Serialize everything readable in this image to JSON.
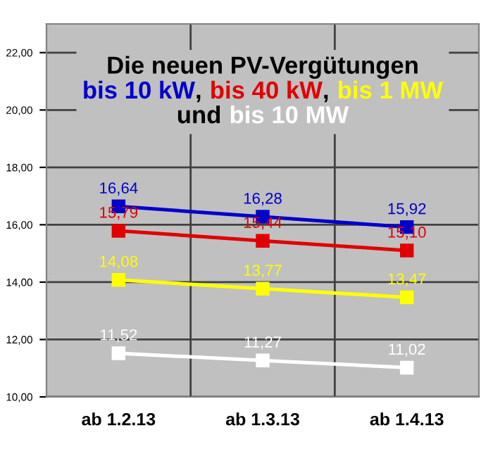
{
  "chart_data": {
    "type": "line",
    "title": "Die neuen PV-Vergütungen",
    "annotations": [
      ",",
      ",",
      "und"
    ],
    "categories": [
      "ab 1.2.13",
      "ab 1.3.13",
      "ab 1.4.13"
    ],
    "series": [
      {
        "name": "bis 10 kW",
        "color": "#0000cc",
        "values": [
          16.64,
          16.28,
          15.92
        ],
        "value_labels": [
          "16,64",
          "16,28",
          "15,92"
        ]
      },
      {
        "name": "bis 40 kW",
        "color": "#e00000",
        "values": [
          15.79,
          15.44,
          15.1
        ],
        "value_labels": [
          "15,79",
          "15,44",
          "15,10"
        ]
      },
      {
        "name": "bis 1 MW",
        "color": "#ffff00",
        "values": [
          14.08,
          13.77,
          13.47
        ],
        "value_labels": [
          "14,08",
          "13,77",
          "13,47"
        ]
      },
      {
        "name": "bis 10 MW",
        "color": "#ffffff",
        "values": [
          11.52,
          11.27,
          11.02
        ],
        "value_labels": [
          "11,52",
          "11,27",
          "11,02"
        ]
      }
    ],
    "ylim": [
      10,
      23
    ],
    "yticks": [
      {
        "value": 10,
        "label": "10,00"
      },
      {
        "value": 12,
        "label": "12,00"
      },
      {
        "value": 14,
        "label": "14,00"
      },
      {
        "value": 16,
        "label": "16,00"
      },
      {
        "value": 18,
        "label": "18,00"
      },
      {
        "value": 20,
        "label": "20,00"
      },
      {
        "value": 22,
        "label": "22,00"
      }
    ],
    "grid": true,
    "marker": "square",
    "line_style": "solid"
  }
}
